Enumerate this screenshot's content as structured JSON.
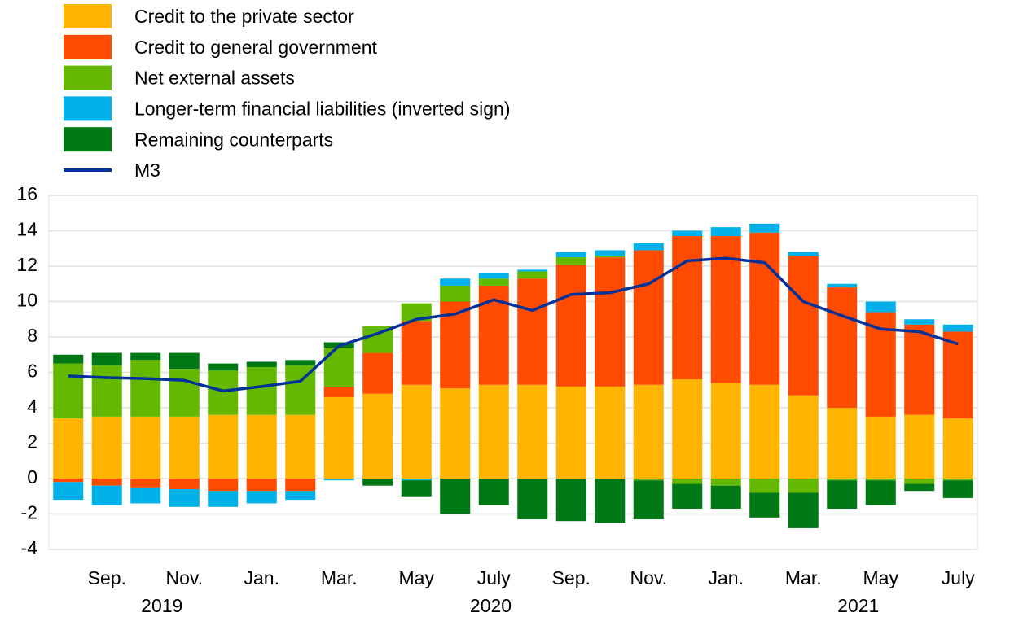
{
  "chart_data": {
    "type": "bar",
    "categories": [
      null,
      "Sep.",
      null,
      "Nov.",
      null,
      "Jan.",
      null,
      "Mar.",
      null,
      "May",
      null,
      "July",
      null,
      "Sep.",
      null,
      "Nov.",
      null,
      "Jan.",
      null,
      "Mar.",
      null,
      "May",
      null,
      "July"
    ],
    "year_groups": [
      {
        "label": "2019",
        "count": 5
      },
      {
        "label": "2020",
        "count": 12
      },
      {
        "label": "2021",
        "count": 7
      }
    ],
    "series": [
      {
        "name": "Credit to the private sector",
        "color": "#ffb400",
        "values": [
          3.4,
          3.5,
          3.5,
          3.5,
          3.6,
          3.6,
          3.6,
          4.6,
          4.8,
          5.3,
          5.1,
          5.3,
          5.3,
          5.2,
          5.2,
          5.3,
          5.6,
          5.4,
          5.3,
          4.7,
          4.0,
          3.5,
          3.6,
          3.4
        ]
      },
      {
        "name": "Credit to general government",
        "color": "#ff4b00",
        "values": [
          -0.2,
          -0.4,
          -0.5,
          -0.6,
          -0.7,
          -0.7,
          -0.7,
          0.6,
          2.3,
          3.6,
          4.9,
          5.6,
          6.0,
          6.9,
          7.3,
          7.6,
          8.1,
          8.3,
          8.6,
          7.9,
          6.8,
          5.9,
          5.1,
          4.9
        ]
      },
      {
        "name": "Net external assets",
        "color": "#65b800",
        "values": [
          3.1,
          2.9,
          3.2,
          2.7,
          2.5,
          2.7,
          2.8,
          2.2,
          1.5,
          1.0,
          0.9,
          0.4,
          0.4,
          0.4,
          0.1,
          -0.1,
          -0.3,
          -0.4,
          -0.8,
          -0.8,
          -0.1,
          -0.1,
          -0.3,
          -0.1
        ]
      },
      {
        "name": "Longer-term financial liabilities (inverted sign)",
        "color": "#00b1ea",
        "values": [
          -1.0,
          -1.1,
          -0.9,
          -1.0,
          -0.9,
          -0.7,
          -0.5,
          -0.1,
          0.0,
          -0.1,
          0.4,
          0.3,
          0.1,
          0.3,
          0.3,
          0.4,
          0.3,
          0.5,
          0.5,
          0.2,
          0.2,
          0.6,
          0.3,
          0.4
        ]
      },
      {
        "name": "Remaining counterparts",
        "color": "#007816",
        "values": [
          0.5,
          0.7,
          0.4,
          0.9,
          0.4,
          0.3,
          0.3,
          0.3,
          -0.4,
          -0.9,
          -2.0,
          -1.5,
          -2.3,
          -2.4,
          -2.5,
          -2.2,
          -1.4,
          -1.3,
          -1.4,
          -2.0,
          -1.6,
          -1.4,
          -0.4,
          -1.0
        ]
      },
      {
        "name": "M3",
        "color": "#003299",
        "type": "line",
        "values": [
          5.8,
          5.7,
          5.65,
          5.55,
          4.95,
          5.2,
          5.5,
          7.5,
          8.2,
          9.0,
          9.3,
          10.1,
          9.5,
          10.4,
          10.5,
          11.0,
          12.3,
          12.45,
          12.2,
          10.0,
          9.2,
          8.45,
          8.3,
          7.6
        ]
      }
    ],
    "ylim": [
      -4,
      16
    ],
    "yticks": [
      -4,
      -2,
      0,
      2,
      4,
      6,
      8,
      10,
      12,
      14,
      16
    ],
    "grid": true
  }
}
